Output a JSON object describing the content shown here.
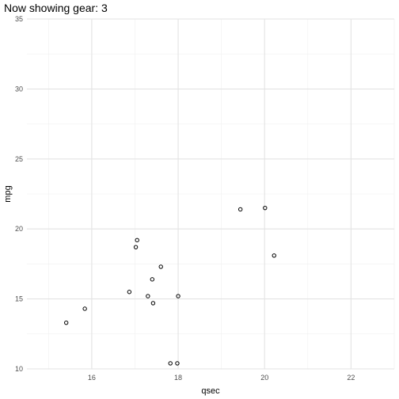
{
  "title": "Now showing gear: 3",
  "chart_data": {
    "type": "scatter",
    "title": "Now showing gear: 3",
    "xlabel": "qsec",
    "ylabel": "mpg",
    "xlim": [
      14.5,
      23.0
    ],
    "ylim": [
      10,
      35
    ],
    "x_ticks": [
      16,
      18,
      20,
      22
    ],
    "y_ticks": [
      10,
      15,
      20,
      25,
      30,
      35
    ],
    "grid": true,
    "points": [
      {
        "x": 15.41,
        "y": 13.3
      },
      {
        "x": 15.84,
        "y": 14.3
      },
      {
        "x": 16.87,
        "y": 15.5
      },
      {
        "x": 17.02,
        "y": 18.7
      },
      {
        "x": 17.05,
        "y": 19.2
      },
      {
        "x": 17.3,
        "y": 15.2
      },
      {
        "x": 17.4,
        "y": 16.4
      },
      {
        "x": 17.42,
        "y": 14.7
      },
      {
        "x": 17.6,
        "y": 17.3
      },
      {
        "x": 17.82,
        "y": 10.4
      },
      {
        "x": 17.98,
        "y": 10.4
      },
      {
        "x": 18.0,
        "y": 15.2
      },
      {
        "x": 19.44,
        "y": 21.4
      },
      {
        "x": 20.01,
        "y": 21.5
      },
      {
        "x": 20.22,
        "y": 18.1
      }
    ]
  }
}
